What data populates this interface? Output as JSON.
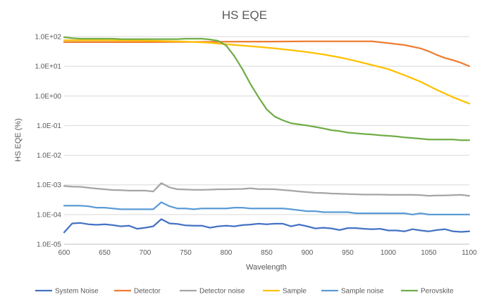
{
  "chart_data": {
    "type": "line",
    "title": "HS EQE",
    "xlabel": "Wavelength",
    "ylabel": "HS EQE (%)",
    "yscale": "log",
    "xlim": [
      600,
      1100
    ],
    "ylim": [
      1e-05,
      100
    ],
    "x_ticks": [
      600,
      650,
      700,
      750,
      800,
      850,
      900,
      950,
      1000,
      1050,
      1100
    ],
    "x_tick_labels": [
      "600",
      "650",
      "700",
      "750",
      "800",
      "850",
      "900",
      "950",
      "1000",
      "1050",
      "1100"
    ],
    "y_ticks": [
      100,
      10,
      1,
      0.1,
      0.01,
      0.001,
      0.0001,
      1e-05
    ],
    "y_tick_labels": [
      "1.0E+02",
      "1.0E+01",
      "1.0E+00",
      "1.0E-01",
      "1.0E-02",
      "1.0E-03",
      "1.0E-04",
      "1.0E-05"
    ],
    "grid": true,
    "legend_position": "bottom",
    "series": [
      {
        "name": "System Noise",
        "color": "#4472C4",
        "x": [
          600,
          610,
          620,
          630,
          640,
          650,
          660,
          670,
          680,
          690,
          700,
          710,
          720,
          730,
          740,
          750,
          760,
          770,
          780,
          790,
          800,
          810,
          820,
          830,
          840,
          850,
          860,
          870,
          880,
          890,
          900,
          910,
          920,
          930,
          940,
          950,
          960,
          970,
          980,
          990,
          1000,
          1010,
          1020,
          1030,
          1040,
          1050,
          1060,
          1070,
          1080,
          1090,
          1100
        ],
        "values": [
          2.5e-05,
          5e-05,
          5.2e-05,
          4.7e-05,
          4.5e-05,
          4.7e-05,
          4.4e-05,
          4e-05,
          4.2e-05,
          3.3e-05,
          3.6e-05,
          4e-05,
          7e-05,
          5e-05,
          4.8e-05,
          4.3e-05,
          4.2e-05,
          4.2e-05,
          3.6e-05,
          4e-05,
          4.2e-05,
          4e-05,
          4.4e-05,
          4.6e-05,
          4.9e-05,
          4.7e-05,
          4.9e-05,
          4.9e-05,
          4e-05,
          4.6e-05,
          4e-05,
          3.4e-05,
          3.6e-05,
          3.4e-05,
          3e-05,
          3.5e-05,
          3.5e-05,
          3.3e-05,
          3.2e-05,
          3.3e-05,
          2.9e-05,
          2.9e-05,
          2.7e-05,
          3.2e-05,
          2.9e-05,
          2.7e-05,
          3e-05,
          3.2e-05,
          2.7e-05,
          2.6e-05,
          2.7e-05
        ]
      },
      {
        "name": "Detector",
        "color": "#ED7D31",
        "x": [
          600,
          650,
          700,
          750,
          800,
          850,
          900,
          950,
          980,
          1000,
          1020,
          1040,
          1050,
          1060,
          1070,
          1080,
          1090,
          1100
        ],
        "values": [
          65,
          65,
          65,
          66,
          67,
          68,
          69,
          69,
          69,
          60,
          52,
          40,
          32,
          24,
          19,
          16,
          13,
          10
        ]
      },
      {
        "name": "Detector noise",
        "color": "#A5A5A5",
        "x": [
          600,
          610,
          620,
          630,
          640,
          650,
          660,
          670,
          680,
          690,
          700,
          710,
          720,
          730,
          740,
          750,
          760,
          770,
          780,
          790,
          800,
          810,
          820,
          830,
          840,
          850,
          860,
          870,
          880,
          890,
          900,
          910,
          920,
          930,
          940,
          950,
          960,
          970,
          980,
          990,
          1000,
          1010,
          1020,
          1030,
          1040,
          1050,
          1060,
          1070,
          1080,
          1090,
          1100
        ],
        "values": [
          0.00092,
          0.00087,
          0.00086,
          0.0008,
          0.00075,
          0.00071,
          0.00067,
          0.00066,
          0.00064,
          0.00064,
          0.00064,
          0.0006,
          0.00115,
          0.00082,
          0.00071,
          0.0007,
          0.00068,
          0.00068,
          0.00069,
          0.00071,
          0.00071,
          0.00072,
          0.00073,
          0.00077,
          0.00072,
          0.00072,
          0.00071,
          0.00067,
          0.00064,
          0.0006,
          0.00057,
          0.00054,
          0.00053,
          0.00051,
          0.0005,
          0.00049,
          0.00048,
          0.00047,
          0.00047,
          0.00047,
          0.00046,
          0.00046,
          0.00046,
          0.00046,
          0.00045,
          0.00043,
          0.00044,
          0.00044,
          0.00045,
          0.00046,
          0.00043
        ]
      },
      {
        "name": "Sample",
        "color": "#FFC000",
        "x": [
          600,
          650,
          700,
          750,
          780,
          800,
          820,
          840,
          860,
          880,
          900,
          920,
          940,
          960,
          980,
          1000,
          1020,
          1040,
          1060,
          1080,
          1100
        ],
        "values": [
          75,
          75,
          73,
          68,
          62,
          55,
          50,
          45,
          40,
          35,
          30,
          25,
          20,
          15,
          11,
          8,
          5,
          3,
          1.6,
          0.9,
          0.55
        ]
      },
      {
        "name": "Sample noise",
        "color": "#5B9BD5",
        "x": [
          600,
          610,
          620,
          630,
          640,
          650,
          660,
          670,
          680,
          690,
          700,
          710,
          720,
          730,
          740,
          750,
          760,
          770,
          780,
          790,
          800,
          810,
          820,
          830,
          840,
          850,
          860,
          870,
          880,
          890,
          900,
          910,
          920,
          930,
          940,
          950,
          960,
          970,
          980,
          990,
          1000,
          1010,
          1020,
          1030,
          1040,
          1050,
          1060,
          1070,
          1080,
          1090,
          1100
        ],
        "values": [
          0.0002,
          0.0002,
          0.0002,
          0.00019,
          0.00017,
          0.00017,
          0.00016,
          0.00015,
          0.00015,
          0.00015,
          0.00015,
          0.00015,
          0.00026,
          0.00019,
          0.00016,
          0.00016,
          0.00015,
          0.00016,
          0.00016,
          0.00016,
          0.00016,
          0.00017,
          0.00017,
          0.00016,
          0.00016,
          0.00016,
          0.00016,
          0.00016,
          0.00015,
          0.00014,
          0.00013,
          0.00013,
          0.00012,
          0.00012,
          0.00012,
          0.00012,
          0.00011,
          0.00011,
          0.00011,
          0.00011,
          0.00011,
          0.00011,
          0.00011,
          0.0001,
          0.00011,
          0.0001,
          0.0001,
          0.0001,
          0.0001,
          0.0001,
          0.0001
        ]
      },
      {
        "name": "Perovskite",
        "color": "#70AD47",
        "x": [
          600,
          610,
          620,
          630,
          640,
          650,
          660,
          670,
          680,
          690,
          700,
          710,
          720,
          730,
          740,
          750,
          760,
          770,
          780,
          790,
          800,
          810,
          820,
          830,
          840,
          850,
          860,
          870,
          880,
          890,
          900,
          910,
          920,
          930,
          940,
          950,
          960,
          970,
          980,
          990,
          1000,
          1010,
          1020,
          1030,
          1040,
          1050,
          1060,
          1070,
          1080,
          1090,
          1100
        ],
        "values": [
          95,
          88,
          85,
          85,
          85,
          85,
          85,
          82,
          82,
          82,
          82,
          82,
          82,
          82,
          82,
          85,
          85,
          85,
          80,
          72,
          50,
          22,
          8,
          2.5,
          0.9,
          0.35,
          0.2,
          0.15,
          0.12,
          0.11,
          0.1,
          0.09,
          0.08,
          0.07,
          0.065,
          0.058,
          0.055,
          0.052,
          0.05,
          0.047,
          0.045,
          0.043,
          0.04,
          0.038,
          0.036,
          0.034,
          0.034,
          0.034,
          0.034,
          0.032,
          0.032
        ]
      }
    ]
  }
}
